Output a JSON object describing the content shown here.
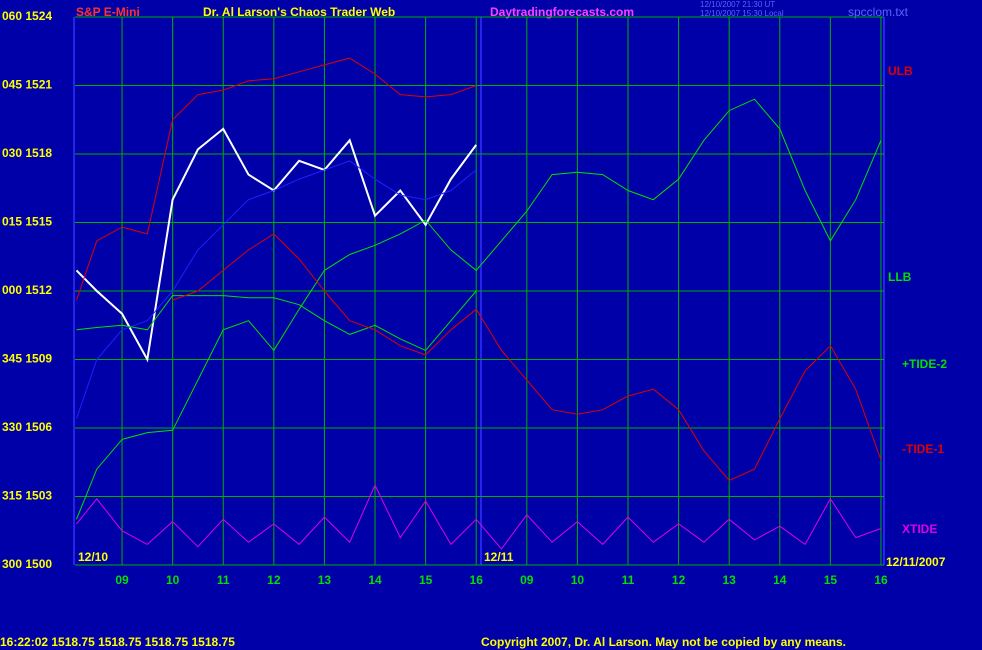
{
  "chart_data": {
    "type": "line",
    "title": "Dr. Al Larson's Chaos Trader Web",
    "instrument": "S&P E-Mini",
    "website": "Daytradingforecasts.com",
    "timestamp_ut": "12/10/2007 21:30 UT",
    "timestamp_local": "12/10/2007 15:30 Local",
    "filename": "spcclom.txt",
    "status_line": "16:22:02  1518.75  1518.75  1518.75  1518.75",
    "copyright": "Copyright 2007, Dr. Al Larson. May not be copied by any means.",
    "date_labels": [
      "12/10",
      "12/11",
      "12/11/2007"
    ],
    "grid": true,
    "xlim": [
      8.07,
      24.06
    ],
    "xticks": [
      {
        "value": 9,
        "label": "09"
      },
      10,
      11,
      12,
      13,
      14,
      15,
      16,
      {
        "value": 17,
        "label": "09"
      },
      {
        "value": 18,
        "label": "10"
      },
      {
        "value": 19,
        "label": "11"
      },
      {
        "value": 20,
        "label": "12"
      },
      {
        "value": 21,
        "label": "13"
      },
      {
        "value": 22,
        "label": "14"
      },
      {
        "value": 23,
        "label": "15"
      },
      {
        "value": 24,
        "label": "16"
      }
    ],
    "ylim": [
      1500,
      1524
    ],
    "yticks": [
      {
        "value": 1500,
        "label": "300 1500"
      },
      {
        "value": 1503,
        "label": "315 1503"
      },
      {
        "value": 1506,
        "label": "330 1506"
      },
      {
        "value": 1509,
        "label": "345 1509"
      },
      {
        "value": 1512,
        "label": "000 1512"
      },
      {
        "value": 1515,
        "label": "015 1515"
      },
      {
        "value": 1518,
        "label": "030 1518"
      },
      {
        "value": 1521,
        "label": "045 1521"
      },
      {
        "value": 1524,
        "label": "060 1524"
      }
    ],
    "x": [
      8.1,
      8.5,
      9,
      9.5,
      10,
      10.5,
      11,
      11.5,
      12,
      12.5,
      13,
      13.5,
      14,
      14.5,
      15,
      15.5,
      16,
      16.5,
      17,
      17.5,
      18,
      18.5,
      19,
      19.5,
      20,
      20.5,
      21,
      21.5,
      22,
      22.5,
      23,
      23.5,
      24
    ],
    "series": [
      {
        "color": "#ffffff",
        "values": [
          1512.9,
          1512.0,
          1511.0,
          1509.0,
          1516.0,
          1518.2,
          1519.1,
          1517.1,
          1516.4,
          1517.7,
          1517.3,
          1518.6,
          1515.3,
          1516.4,
          1514.9,
          1516.9,
          1518.4,
          null,
          null,
          null,
          null,
          null,
          null,
          null,
          null,
          null,
          null,
          null,
          null,
          null,
          null,
          null,
          null
        ]
      },
      {
        "color": "#2020ff",
        "values": [
          1506.4,
          1509.0,
          1510.3,
          1510.7,
          1512.0,
          1513.8,
          1514.9,
          1516.0,
          1516.4,
          1516.9,
          1517.3,
          1517.7,
          1516.9,
          1516.2,
          1516.0,
          1516.4,
          1517.3,
          null,
          null,
          null,
          null,
          null,
          null,
          null,
          null,
          null,
          null,
          null,
          null,
          null,
          null,
          null,
          null
        ]
      },
      {
        "name": "ULB",
        "color": "#e00000",
        "values": [
          1511.6,
          1514.2,
          1514.8,
          1514.5,
          1519.5,
          1520.6,
          1520.8,
          1521.2,
          1521.3,
          1521.6,
          1521.9,
          1522.2,
          1521.5,
          1520.6,
          1520.5,
          1520.6,
          1521.0,
          null,
          null,
          null,
          null,
          null,
          null,
          null,
          null,
          null,
          null,
          null,
          null,
          null,
          null,
          null,
          null
        ]
      },
      {
        "name": "LLB",
        "color": "#00e000",
        "values": [
          1510.3,
          1510.4,
          1510.5,
          1510.3,
          1511.8,
          1511.8,
          1511.8,
          1511.7,
          1511.7,
          1511.4,
          1510.7,
          1510.1,
          1510.5,
          1509.9,
          1509.4,
          1510.7,
          1512.0,
          null,
          null,
          null,
          null,
          null,
          null,
          null,
          null,
          null,
          null,
          null,
          null,
          null,
          null,
          null,
          null
        ]
      },
      {
        "name": "+TIDE-2",
        "color": "#00e000",
        "values": [
          1502.0,
          1504.2,
          1505.5,
          1505.8,
          1505.9,
          1508.1,
          1510.3,
          1510.7,
          1509.4,
          1511.2,
          1512.9,
          1513.6,
          1514.0,
          1514.5,
          1515.1,
          1513.8,
          1512.9,
          1514.2,
          1515.5,
          1517.1,
          1517.2,
          1517.1,
          1516.4,
          1516.0,
          1516.9,
          1518.6,
          1519.9,
          1520.4,
          1519.1,
          1516.4,
          1514.2,
          1516.0,
          1518.6
        ]
      },
      {
        "name": "-TIDE-1",
        "color": "#e00000",
        "values": [
          null,
          null,
          null,
          null,
          1511.6,
          1512.0,
          1512.9,
          1513.8,
          1514.5,
          1513.4,
          1512.0,
          1510.7,
          1510.3,
          1509.6,
          1509.2,
          1510.3,
          1511.2,
          1509.4,
          1508.1,
          1506.8,
          1506.6,
          1506.8,
          1507.4,
          1507.7,
          1506.8,
          1505.0,
          1503.7,
          1504.2,
          1506.4,
          1508.5,
          1509.6,
          1507.7,
          1504.6
        ]
      },
      {
        "name": "XTIDE",
        "color": "#e000e0",
        "values": [
          1501.8,
          1502.9,
          1501.5,
          1500.9,
          1501.9,
          1500.8,
          1502.0,
          1501.0,
          1501.8,
          1500.9,
          1502.1,
          1501.0,
          1503.5,
          1501.2,
          1502.8,
          1500.9,
          1502.0,
          1500.7,
          1502.2,
          1501.0,
          1501.9,
          1500.9,
          1502.1,
          1501.0,
          1501.8,
          1501.0,
          1502.0,
          1501.1,
          1501.7,
          1500.9,
          1502.9,
          1501.2,
          1501.6
        ]
      }
    ]
  }
}
